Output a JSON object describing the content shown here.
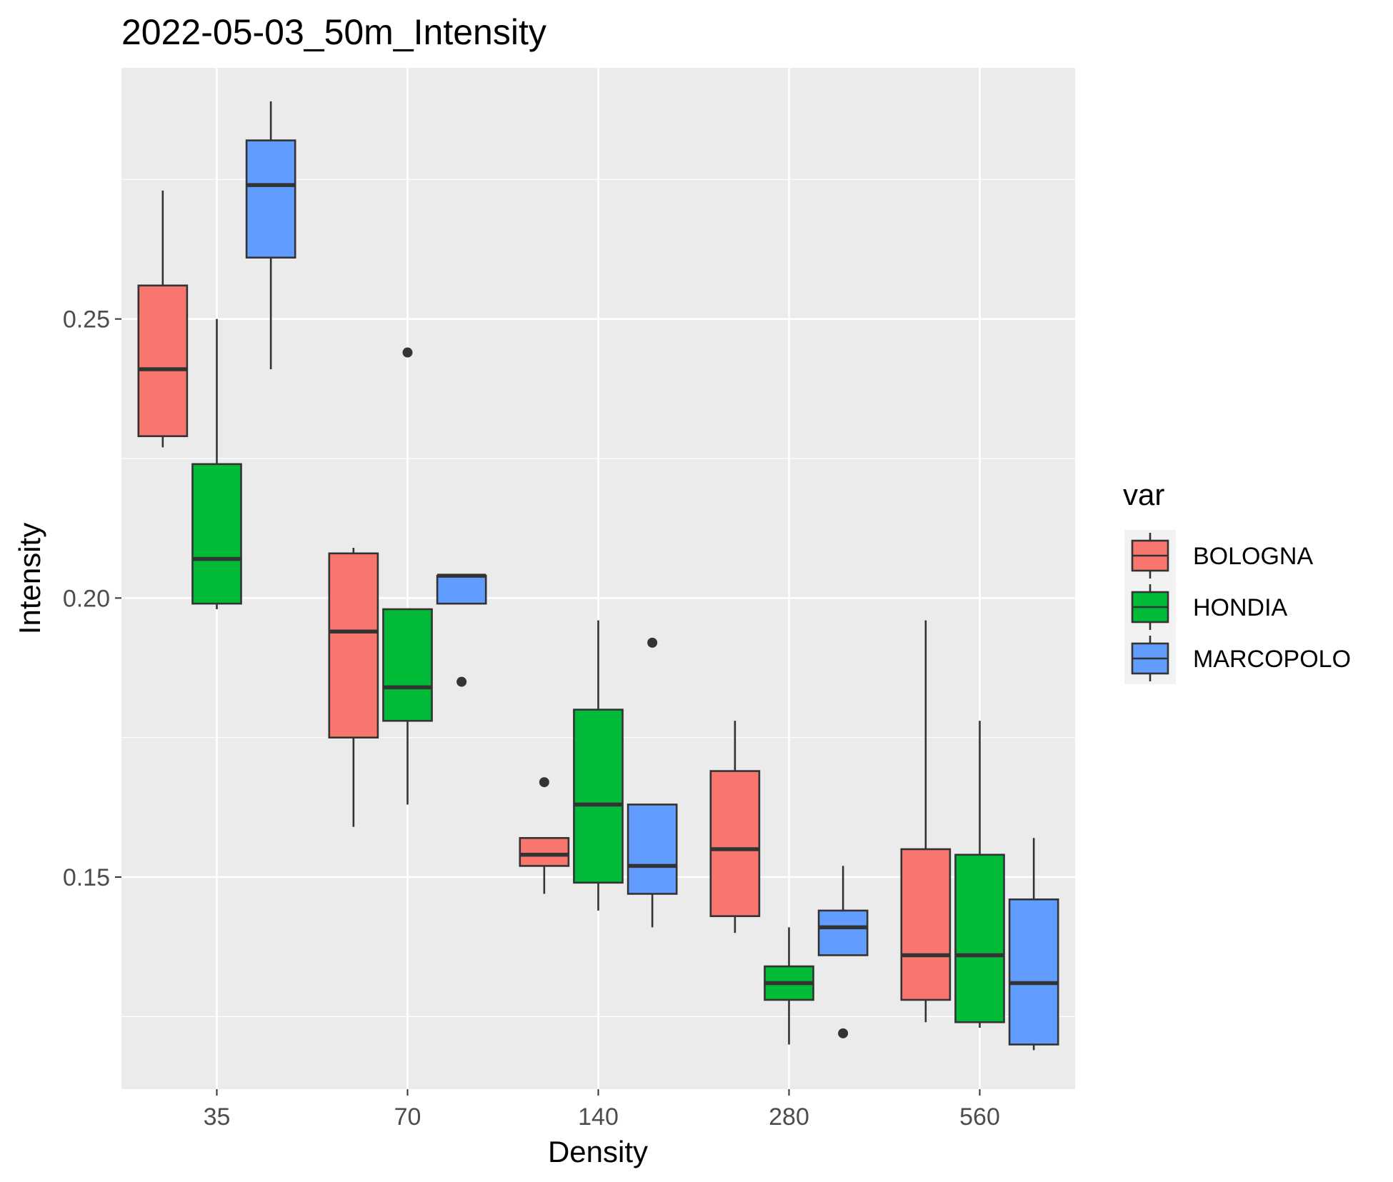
{
  "chart_data": {
    "type": "boxplot",
    "title": "2022-05-03_50m_Intensity",
    "xlabel": "Density",
    "ylabel": "Intensity",
    "categories": [
      "35",
      "70",
      "140",
      "280",
      "560"
    ],
    "ylim": [
      0.112,
      0.295
    ],
    "y_ticks": [
      0.15,
      0.2,
      0.25
    ],
    "y_tick_labels": [
      "0.15",
      "0.20",
      "0.25"
    ],
    "grid": true,
    "legend": {
      "title": "var",
      "position": "right"
    },
    "series": [
      {
        "name": "BOLOGNA",
        "color": "#F8766D",
        "boxes": [
          {
            "min": 0.227,
            "q1": 0.229,
            "median": 0.241,
            "q3": 0.256,
            "max": 0.273,
            "outliers": []
          },
          {
            "min": 0.159,
            "q1": 0.175,
            "median": 0.194,
            "q3": 0.208,
            "max": 0.209,
            "outliers": []
          },
          {
            "min": 0.147,
            "q1": 0.152,
            "median": 0.154,
            "q3": 0.157,
            "max": 0.157,
            "outliers": [
              0.167
            ]
          },
          {
            "min": 0.14,
            "q1": 0.143,
            "median": 0.155,
            "q3": 0.169,
            "max": 0.178,
            "outliers": []
          },
          {
            "min": 0.124,
            "q1": 0.128,
            "median": 0.136,
            "q3": 0.155,
            "max": 0.196,
            "outliers": []
          }
        ]
      },
      {
        "name": "HONDIA",
        "color": "#00BA38",
        "boxes": [
          {
            "min": 0.198,
            "q1": 0.199,
            "median": 0.207,
            "q3": 0.224,
            "max": 0.25,
            "outliers": []
          },
          {
            "min": 0.163,
            "q1": 0.178,
            "median": 0.184,
            "q3": 0.198,
            "max": 0.198,
            "outliers": [
              0.244
            ]
          },
          {
            "min": 0.144,
            "q1": 0.149,
            "median": 0.163,
            "q3": 0.18,
            "max": 0.196,
            "outliers": []
          },
          {
            "min": 0.12,
            "q1": 0.128,
            "median": 0.131,
            "q3": 0.134,
            "max": 0.141,
            "outliers": []
          },
          {
            "min": 0.123,
            "q1": 0.124,
            "median": 0.136,
            "q3": 0.154,
            "max": 0.178,
            "outliers": []
          }
        ]
      },
      {
        "name": "MARCOPOLO",
        "color": "#619CFF",
        "boxes": [
          {
            "min": 0.241,
            "q1": 0.261,
            "median": 0.274,
            "q3": 0.282,
            "max": 0.289,
            "outliers": []
          },
          {
            "min": 0.199,
            "q1": 0.199,
            "median": 0.204,
            "q3": 0.204,
            "max": 0.204,
            "outliers": [
              0.185
            ]
          },
          {
            "min": 0.141,
            "q1": 0.147,
            "median": 0.152,
            "q3": 0.163,
            "max": 0.163,
            "outliers": [
              0.192
            ]
          },
          {
            "min": 0.136,
            "q1": 0.136,
            "median": 0.141,
            "q3": 0.144,
            "max": 0.152,
            "outliers": [
              0.122
            ]
          },
          {
            "min": 0.119,
            "q1": 0.12,
            "median": 0.131,
            "q3": 0.146,
            "max": 0.157,
            "outliers": []
          }
        ]
      }
    ]
  }
}
